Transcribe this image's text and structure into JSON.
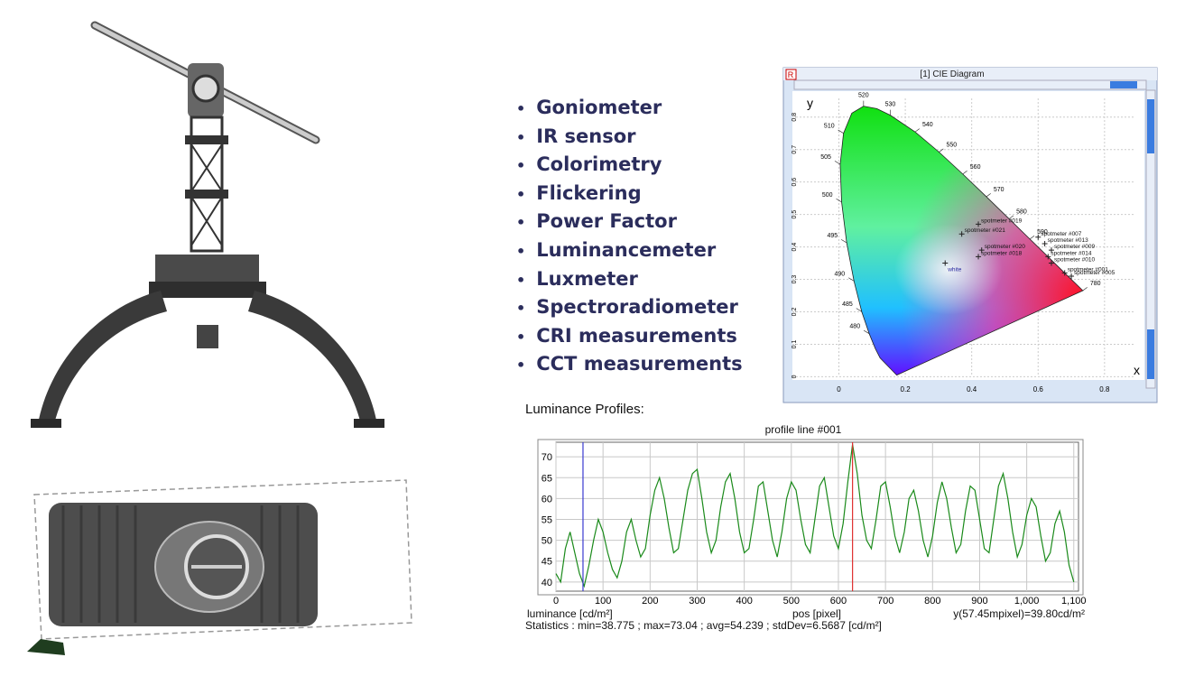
{
  "features": [
    "Goniometer",
    "IR sensor",
    "Colorimetry",
    "Flickering",
    "Power Factor",
    "Luminancemeter",
    "Luxmeter",
    "Spectroradiometer",
    "CRI measurements",
    "CCT measurements"
  ],
  "cie": {
    "window_title": "[1] CIE Diagram",
    "x_label": "x",
    "y_label": "y",
    "xlim": [
      -0.14,
      0.92
    ],
    "ylim": [
      -0.01,
      0.88
    ],
    "xticks": [
      0,
      0.2,
      0.4,
      0.6,
      0.8
    ],
    "yticks": [
      0,
      0.1,
      0.2,
      0.3,
      0.4,
      0.5,
      0.6,
      0.7,
      0.8
    ],
    "locus": [
      {
        "nm": null,
        "x": 0.1741,
        "y": 0.005
      },
      {
        "nm": null,
        "x": 0.1241,
        "y": 0.0578
      },
      {
        "nm": null,
        "x": 0.1096,
        "y": 0.0868
      },
      {
        "nm": "480",
        "x": 0.0913,
        "y": 0.1327
      },
      {
        "nm": "485",
        "x": 0.0687,
        "y": 0.2007
      },
      {
        "nm": "490",
        "x": 0.0454,
        "y": 0.295
      },
      {
        "nm": "495",
        "x": 0.0235,
        "y": 0.4127
      },
      {
        "nm": "500",
        "x": 0.0082,
        "y": 0.5384
      },
      {
        "nm": "505",
        "x": 0.0039,
        "y": 0.6548
      },
      {
        "nm": "510",
        "x": 0.0139,
        "y": 0.7502
      },
      {
        "nm": null,
        "x": 0.0389,
        "y": 0.812
      },
      {
        "nm": "520",
        "x": 0.0743,
        "y": 0.8338
      },
      {
        "nm": null,
        "x": 0.1142,
        "y": 0.8262
      },
      {
        "nm": "530",
        "x": 0.1547,
        "y": 0.8059
      },
      {
        "nm": "540",
        "x": 0.2296,
        "y": 0.7543
      },
      {
        "nm": "550",
        "x": 0.3016,
        "y": 0.6923
      },
      {
        "nm": "560",
        "x": 0.3731,
        "y": 0.6245
      },
      {
        "nm": "570",
        "x": 0.4441,
        "y": 0.5547
      },
      {
        "nm": "580",
        "x": 0.5125,
        "y": 0.4866
      },
      {
        "nm": "590",
        "x": 0.5752,
        "y": 0.4242
      },
      {
        "nm": null,
        "x": 0.627,
        "y": 0.3725
      },
      {
        "nm": null,
        "x": 0.6915,
        "y": 0.3083
      },
      {
        "nm": "780",
        "x": 0.7347,
        "y": 0.2653
      }
    ],
    "points": [
      {
        "label": "white",
        "x": 0.32,
        "y": 0.35
      },
      {
        "label": "spotmeter #021",
        "x": 0.37,
        "y": 0.44
      },
      {
        "label": "spotmeter #019",
        "x": 0.42,
        "y": 0.47
      },
      {
        "label": "spotmeter #020",
        "x": 0.43,
        "y": 0.39
      },
      {
        "label": "spotmeter #018",
        "x": 0.42,
        "y": 0.37
      },
      {
        "label": "spotmeter #007",
        "x": 0.6,
        "y": 0.43
      },
      {
        "label": "spotmeter #013",
        "x": 0.62,
        "y": 0.41
      },
      {
        "label": "spotmeter #009",
        "x": 0.64,
        "y": 0.39
      },
      {
        "label": "spotmeter #014",
        "x": 0.63,
        "y": 0.37
      },
      {
        "label": "spotmeter #010",
        "x": 0.64,
        "y": 0.35
      },
      {
        "label": "spotmeter #001",
        "x": 0.68,
        "y": 0.32
      },
      {
        "label": "spotmeter #005",
        "x": 0.7,
        "y": 0.31
      }
    ]
  },
  "chart_data": {
    "type": "line",
    "heading": "Luminance Profiles:",
    "title": "profile line #001",
    "y_label": "luminance [cd/m²]",
    "x_label": "pos [pixel]",
    "cursor_readout": "y(57.45mpixel)=39.80cd/m²",
    "statistics": "Statistics : min=38.775 ; max=73.04 ; avg=54.239 ; stdDev=6.5687 [cd/m²]",
    "xlim": [
      0,
      1110
    ],
    "ylim": [
      37.8,
      73.5
    ],
    "xticks": [
      0,
      100,
      200,
      300,
      400,
      500,
      600,
      700,
      800,
      900,
      {
        "value": 1000,
        "label": "1,000"
      },
      {
        "value": 1100,
        "label": "1,100"
      }
    ],
    "yticks": [
      40,
      45,
      50,
      55,
      60,
      65,
      70
    ],
    "grid": true,
    "cursors": [
      {
        "x": 57.45,
        "color": "#3a3ad0"
      },
      {
        "x": 630,
        "color": "#e03030"
      }
    ],
    "x": [
      0,
      10,
      20,
      30,
      40,
      50,
      60,
      70,
      80,
      90,
      100,
      110,
      120,
      130,
      140,
      150,
      160,
      170,
      180,
      190,
      200,
      210,
      220,
      230,
      240,
      250,
      260,
      270,
      280,
      290,
      300,
      310,
      320,
      330,
      340,
      350,
      360,
      370,
      380,
      390,
      400,
      410,
      420,
      430,
      440,
      450,
      460,
      470,
      480,
      490,
      500,
      510,
      520,
      530,
      540,
      550,
      560,
      570,
      580,
      590,
      600,
      610,
      620,
      630,
      640,
      650,
      660,
      670,
      680,
      690,
      700,
      710,
      720,
      730,
      740,
      750,
      760,
      770,
      780,
      790,
      800,
      810,
      820,
      830,
      840,
      850,
      860,
      870,
      880,
      890,
      900,
      910,
      920,
      930,
      940,
      950,
      960,
      970,
      980,
      990,
      1000,
      1010,
      1020,
      1030,
      1040,
      1050,
      1060,
      1070,
      1080,
      1090,
      1100
    ],
    "series": [
      {
        "name": "luminance",
        "color": "#1a8a1a",
        "values": [
          42,
          40,
          48,
          52,
          47,
          42,
          39,
          44,
          50,
          55,
          52,
          47,
          43,
          41,
          45,
          52,
          55,
          50,
          46,
          48,
          56,
          62,
          65,
          60,
          53,
          47,
          48,
          55,
          62,
          66,
          67,
          60,
          52,
          47,
          50,
          58,
          64,
          66,
          60,
          52,
          47,
          48,
          55,
          63,
          64,
          57,
          50,
          46,
          52,
          60,
          64,
          62,
          55,
          49,
          47,
          55,
          63,
          65,
          58,
          51,
          48,
          54,
          64,
          73,
          66,
          56,
          50,
          48,
          55,
          63,
          64,
          58,
          51,
          47,
          52,
          60,
          62,
          57,
          50,
          46,
          51,
          59,
          64,
          60,
          53,
          47,
          49,
          57,
          63,
          62,
          55,
          48,
          47,
          55,
          63,
          66,
          60,
          52,
          46,
          49,
          56,
          60,
          58,
          51,
          45,
          47,
          54,
          57,
          52,
          44,
          40
        ]
      }
    ]
  }
}
